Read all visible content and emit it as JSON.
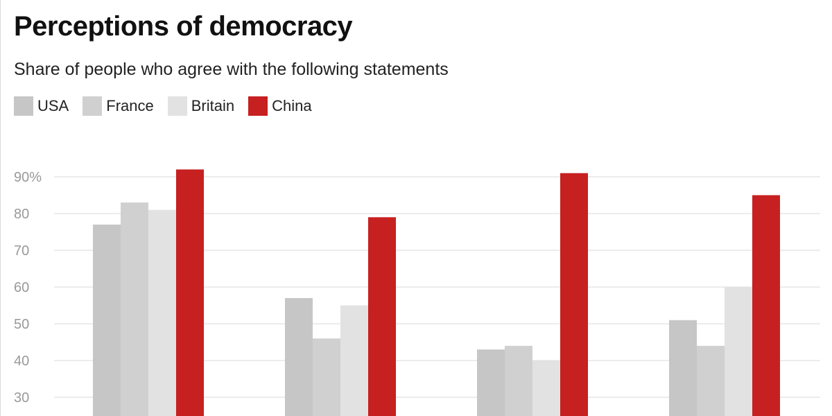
{
  "title": "Perceptions of democracy",
  "subtitle": "Share of people who agree with the following statements",
  "legend": [
    {
      "label": "USA",
      "color": "#c6c6c6"
    },
    {
      "label": "France",
      "color": "#d0d0d0"
    },
    {
      "label": "Britain",
      "color": "#e2e2e2"
    },
    {
      "label": "China",
      "color": "#c72020"
    }
  ],
  "chart_data": {
    "type": "bar",
    "title": "Perceptions of democracy",
    "subtitle": "Share of people who agree with the following statements",
    "categories": [
      "",
      "",
      "",
      ""
    ],
    "series": [
      {
        "name": "USA",
        "color": "#c6c6c6",
        "values": [
          77,
          57,
          43,
          51
        ]
      },
      {
        "name": "France",
        "color": "#d0d0d0",
        "values": [
          83,
          46,
          44,
          44
        ]
      },
      {
        "name": "Britain",
        "color": "#e2e2e2",
        "values": [
          81,
          55,
          40,
          60
        ]
      },
      {
        "name": "China",
        "color": "#c72020",
        "values": [
          92,
          79,
          91,
          85
        ]
      }
    ],
    "yticks": [
      30,
      40,
      50,
      60,
      70,
      80,
      90
    ],
    "ytick_labels": [
      "30",
      "40",
      "50",
      "60",
      "70",
      "80",
      "90%"
    ],
    "ylim": [
      25,
      100
    ],
    "grid": true,
    "legend_position": "top-left"
  }
}
